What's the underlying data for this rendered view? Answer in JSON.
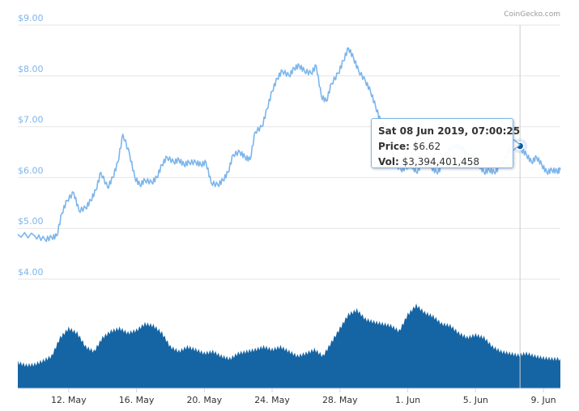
{
  "credit": "CoinGecko.com",
  "colors": {
    "line": "#7cb5ec",
    "volume": "#1565a4",
    "grid": "#e6e6e6",
    "marker": "#0d5a9a"
  },
  "tooltip": {
    "date": "Sat 08 Jun 2019, 07:00:25",
    "price_label": "Price:",
    "price_value": "$6.62",
    "vol_label": "Vol:",
    "vol_value": "$3,394,401,458"
  },
  "chart_data": [
    {
      "type": "line",
      "ylim": [
        4.0,
        9.0
      ],
      "y_ticks": [
        "$4.00",
        "$5.00",
        "$6.00",
        "$7.00",
        "$8.00",
        "$9.00"
      ],
      "x_ticks": [
        "12. May",
        "16. May",
        "20. May",
        "24. May",
        "28. May",
        "1. Jun",
        "5. Jun",
        "9. Jun"
      ],
      "x_tick_days": [
        12,
        16,
        20,
        24,
        28,
        32,
        36,
        40
      ],
      "xlim_days": [
        9.0,
        41.0
      ],
      "series": [
        {
          "x_days": [
            9.0,
            10.0,
            10.6,
            11.0,
            11.3,
            11.6,
            11.9,
            12.3,
            12.6,
            13.0,
            13.3,
            13.6,
            13.9,
            14.3,
            14.6,
            14.9,
            15.2,
            15.6,
            15.9,
            16.2,
            16.5,
            16.9,
            17.2,
            17.5,
            17.8,
            18.2,
            18.5,
            18.8,
            19.1,
            19.5,
            19.8,
            20.1,
            20.4,
            20.8,
            21.1,
            21.4,
            21.7,
            22.1,
            22.4,
            22.7,
            23.0,
            23.4,
            23.7,
            24.0,
            24.3,
            24.6,
            25.0,
            25.3,
            25.6,
            25.9,
            26.3,
            26.6,
            26.9,
            27.2,
            27.5,
            27.9,
            28.2,
            28.5,
            28.8,
            29.1,
            29.5,
            29.8,
            30.1,
            30.4,
            30.8,
            31.0,
            31.2,
            31.6,
            31.9,
            32.2,
            32.5,
            32.8,
            33.1,
            33.4,
            33.7,
            34.0,
            34.3,
            34.7,
            35.0,
            35.3,
            35.6,
            35.9,
            36.2,
            36.5,
            36.8,
            37.1,
            37.4,
            37.8,
            38.1,
            38.4,
            38.7,
            39.0,
            39.3,
            39.6,
            39.9,
            40.2,
            40.5,
            40.8,
            41.0
          ],
          "values": [
            4.88,
            4.85,
            4.78,
            4.82,
            4.85,
            5.3,
            5.55,
            5.7,
            5.35,
            5.4,
            5.55,
            5.75,
            6.1,
            5.8,
            6.0,
            6.3,
            6.85,
            6.45,
            6.0,
            5.85,
            5.95,
            5.9,
            6.0,
            6.25,
            6.4,
            6.3,
            6.35,
            6.25,
            6.3,
            6.3,
            6.25,
            6.3,
            5.9,
            5.85,
            5.95,
            6.1,
            6.45,
            6.5,
            6.4,
            6.35,
            6.9,
            7.0,
            7.35,
            7.7,
            7.95,
            8.1,
            8.0,
            8.15,
            8.2,
            8.1,
            8.05,
            8.2,
            7.6,
            7.5,
            7.85,
            8.05,
            8.3,
            8.55,
            8.35,
            8.1,
            7.9,
            7.7,
            7.4,
            7.1,
            7.0,
            6.6,
            6.3,
            6.15,
            6.2,
            6.25,
            6.1,
            6.25,
            6.3,
            6.2,
            6.1,
            6.2,
            6.5,
            6.62,
            6.62,
            6.55,
            6.4,
            6.45,
            6.25,
            6.1,
            6.15,
            6.1,
            6.2,
            6.4,
            6.62,
            6.7,
            6.55,
            6.45,
            6.3,
            6.4,
            6.25,
            6.1,
            6.15,
            6.12,
            6.15
          ],
          "marker": {
            "x_day": 38.62,
            "value": 6.62
          }
        }
      ]
    },
    {
      "type": "area",
      "x_days": [
        9.0,
        9.5,
        10.0,
        10.5,
        11.0,
        11.5,
        12.0,
        12.5,
        13.0,
        13.5,
        14.0,
        14.5,
        15.0,
        15.5,
        16.0,
        16.5,
        17.0,
        17.5,
        18.0,
        18.5,
        19.0,
        19.5,
        20.0,
        20.5,
        21.0,
        21.5,
        22.0,
        22.5,
        23.0,
        23.5,
        24.0,
        24.5,
        25.0,
        25.5,
        26.0,
        26.5,
        27.0,
        27.5,
        28.0,
        28.5,
        29.0,
        29.5,
        30.0,
        30.5,
        31.0,
        31.5,
        32.0,
        32.5,
        33.0,
        33.5,
        34.0,
        34.5,
        35.0,
        35.5,
        36.0,
        36.5,
        37.0,
        37.5,
        38.0,
        38.5,
        39.0,
        39.5,
        40.0,
        40.5,
        41.0
      ],
      "values": [
        0.28,
        0.25,
        0.26,
        0.3,
        0.35,
        0.55,
        0.65,
        0.6,
        0.45,
        0.4,
        0.55,
        0.62,
        0.65,
        0.6,
        0.63,
        0.7,
        0.68,
        0.6,
        0.45,
        0.4,
        0.45,
        0.42,
        0.38,
        0.4,
        0.35,
        0.32,
        0.38,
        0.4,
        0.42,
        0.45,
        0.42,
        0.45,
        0.4,
        0.35,
        0.38,
        0.42,
        0.35,
        0.5,
        0.65,
        0.8,
        0.85,
        0.75,
        0.72,
        0.7,
        0.68,
        0.62,
        0.8,
        0.9,
        0.82,
        0.78,
        0.7,
        0.68,
        0.6,
        0.55,
        0.58,
        0.55,
        0.45,
        0.4,
        0.38,
        0.36,
        0.38,
        0.35,
        0.33,
        0.32,
        0.32
      ]
    }
  ]
}
